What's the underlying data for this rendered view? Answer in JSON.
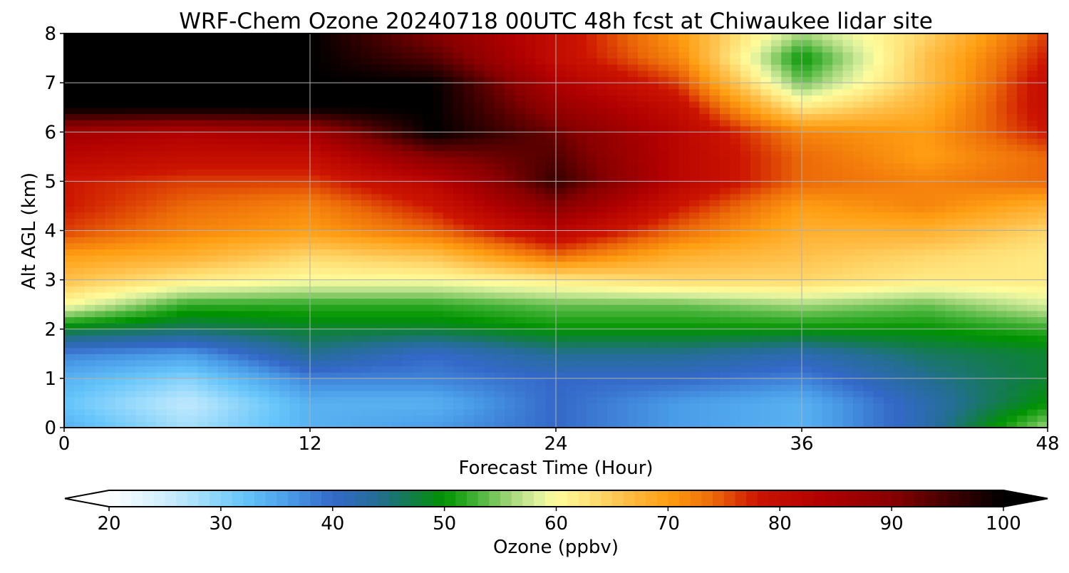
{
  "chart_data": {
    "type": "heatmap",
    "title": "WRF-Chem Ozone  20240718 00UTC 48h fcst at Chiwaukee lidar site",
    "xlabel": "Forecast Time (Hour)",
    "ylabel": "Alt AGL (km)",
    "xlim": [
      0,
      48
    ],
    "ylim": [
      0,
      8
    ],
    "xticks": [
      0,
      12,
      24,
      36,
      48
    ],
    "yticks": [
      0,
      1,
      2,
      3,
      4,
      5,
      6,
      7,
      8
    ],
    "grid": true,
    "x": [
      0,
      6,
      12,
      18,
      24,
      30,
      36,
      42,
      48
    ],
    "y": [
      0,
      0.5,
      1,
      1.5,
      2,
      2.5,
      3,
      3.5,
      4,
      4.5,
      5,
      5.5,
      6,
      6.5,
      7,
      7.5,
      8
    ],
    "z": [
      [
        34,
        28,
        34,
        36,
        40,
        36,
        34,
        42,
        56
      ],
      [
        32,
        26,
        34,
        34,
        40,
        36,
        34,
        42,
        50
      ],
      [
        34,
        30,
        38,
        38,
        40,
        40,
        38,
        44,
        48
      ],
      [
        38,
        36,
        44,
        40,
        44,
        44,
        42,
        46,
        48
      ],
      [
        48,
        46,
        48,
        48,
        50,
        50,
        50,
        50,
        52
      ],
      [
        60,
        52,
        52,
        52,
        54,
        54,
        56,
        54,
        58
      ],
      [
        66,
        62,
        60,
        60,
        62,
        64,
        64,
        62,
        62
      ],
      [
        70,
        68,
        64,
        66,
        74,
        68,
        66,
        64,
        62
      ],
      [
        76,
        72,
        70,
        74,
        82,
        74,
        68,
        68,
        64
      ],
      [
        78,
        74,
        72,
        78,
        90,
        78,
        70,
        72,
        68
      ],
      [
        78,
        76,
        76,
        82,
        96,
        82,
        74,
        72,
        74
      ],
      [
        82,
        80,
        80,
        90,
        94,
        82,
        74,
        70,
        74
      ],
      [
        86,
        84,
        86,
        100,
        92,
        82,
        72,
        70,
        78
      ],
      [
        100,
        100,
        100,
        100,
        88,
        80,
        62,
        68,
        80
      ],
      [
        100,
        100,
        100,
        100,
        84,
        76,
        54,
        66,
        80
      ],
      [
        100,
        100,
        100,
        94,
        80,
        72,
        50,
        66,
        78
      ],
      [
        100,
        100,
        100,
        90,
        80,
        70,
        56,
        64,
        76
      ]
    ],
    "colorbar": {
      "label": "Ozone  (ppbv)",
      "min": 20,
      "max": 100,
      "ticks": [
        20,
        30,
        40,
        50,
        60,
        70,
        80,
        90,
        100
      ],
      "extend": "both",
      "stops": [
        {
          "v": 20,
          "c": "#ffffff"
        },
        {
          "v": 25,
          "c": "#cfeefe"
        },
        {
          "v": 28,
          "c": "#a6dffc"
        },
        {
          "v": 32,
          "c": "#66c5fa"
        },
        {
          "v": 36,
          "c": "#4a9ee8"
        },
        {
          "v": 40,
          "c": "#3468c8"
        },
        {
          "v": 44,
          "c": "#246e94"
        },
        {
          "v": 47,
          "c": "#127c4a"
        },
        {
          "v": 50,
          "c": "#009300"
        },
        {
          "v": 53,
          "c": "#48b43a"
        },
        {
          "v": 56,
          "c": "#a5d77c"
        },
        {
          "v": 58,
          "c": "#d6ee9c"
        },
        {
          "v": 60,
          "c": "#fffc9c"
        },
        {
          "v": 63,
          "c": "#ffe178"
        },
        {
          "v": 66,
          "c": "#ffc04a"
        },
        {
          "v": 70,
          "c": "#ff9e12"
        },
        {
          "v": 74,
          "c": "#ec6a08"
        },
        {
          "v": 78,
          "c": "#cc1400"
        },
        {
          "v": 84,
          "c": "#b00000"
        },
        {
          "v": 90,
          "c": "#880000"
        },
        {
          "v": 95,
          "c": "#440000"
        },
        {
          "v": 100,
          "c": "#000000"
        }
      ]
    }
  }
}
